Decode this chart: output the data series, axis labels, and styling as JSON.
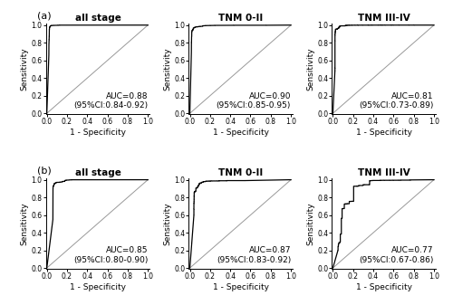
{
  "panels": [
    {
      "label": "(a)",
      "row": 0,
      "subplots": [
        {
          "title": "all stage",
          "auc_text": "AUC=0.88",
          "ci_text": "(95%CI:0.84-0.92)",
          "curve_seed": 1,
          "n_steps": 120,
          "alpha": 5.0,
          "beta_shape": 0.4,
          "initial_jump": 0.63,
          "initial_jump_fpr": 0.02
        },
        {
          "title": "TNM 0-II",
          "auc_text": "AUC=0.90",
          "ci_text": "(95%CI:0.85-0.95)",
          "curve_seed": 2,
          "n_steps": 80,
          "alpha": 8.0,
          "beta_shape": 0.3,
          "initial_jump": 0.68,
          "initial_jump_fpr": 0.015
        },
        {
          "title": "TNM III-IV",
          "auc_text": "AUC=0.81",
          "ci_text": "(95%CI:0.73-0.89)",
          "curve_seed": 3,
          "n_steps": 60,
          "alpha": 3.5,
          "beta_shape": 0.5,
          "initial_jump": 0.48,
          "initial_jump_fpr": 0.02
        }
      ]
    },
    {
      "label": "(b)",
      "row": 1,
      "subplots": [
        {
          "title": "all stage",
          "auc_text": "AUC=0.85",
          "ci_text": "(95%CI:0.80-0.90)",
          "curve_seed": 4,
          "n_steps": 70,
          "alpha": 4.5,
          "beta_shape": 0.45,
          "initial_jump": 0.55,
          "initial_jump_fpr": 0.06
        },
        {
          "title": "TNM 0-II",
          "auc_text": "AUC=0.87",
          "ci_text": "(95%CI:0.83-0.92)",
          "curve_seed": 5,
          "n_steps": 50,
          "alpha": 6.0,
          "beta_shape": 0.4,
          "initial_jump": 0.6,
          "initial_jump_fpr": 0.04
        },
        {
          "title": "TNM III-IV",
          "auc_text": "AUC=0.77",
          "ci_text": "(95%CI:0.67-0.86)",
          "curve_seed": 6,
          "n_steps": 35,
          "alpha": 2.8,
          "beta_shape": 0.7,
          "initial_jump": 0.2,
          "initial_jump_fpr": 0.05
        }
      ]
    }
  ],
  "xlabel": "1 - Specificity",
  "ylabel": "Sensitivity",
  "tick_labels": [
    "0.0",
    "0.2",
    "0.4",
    "0.6",
    "0.8",
    "1.0"
  ],
  "tick_values": [
    0.0,
    0.2,
    0.4,
    0.6,
    0.8,
    1.0
  ],
  "curve_color": "#000000",
  "diag_color": "#999999",
  "background_color": "#ffffff",
  "title_fontsize": 7.5,
  "label_fontsize": 6.5,
  "tick_fontsize": 5.5,
  "ann_fontsize": 6.5
}
